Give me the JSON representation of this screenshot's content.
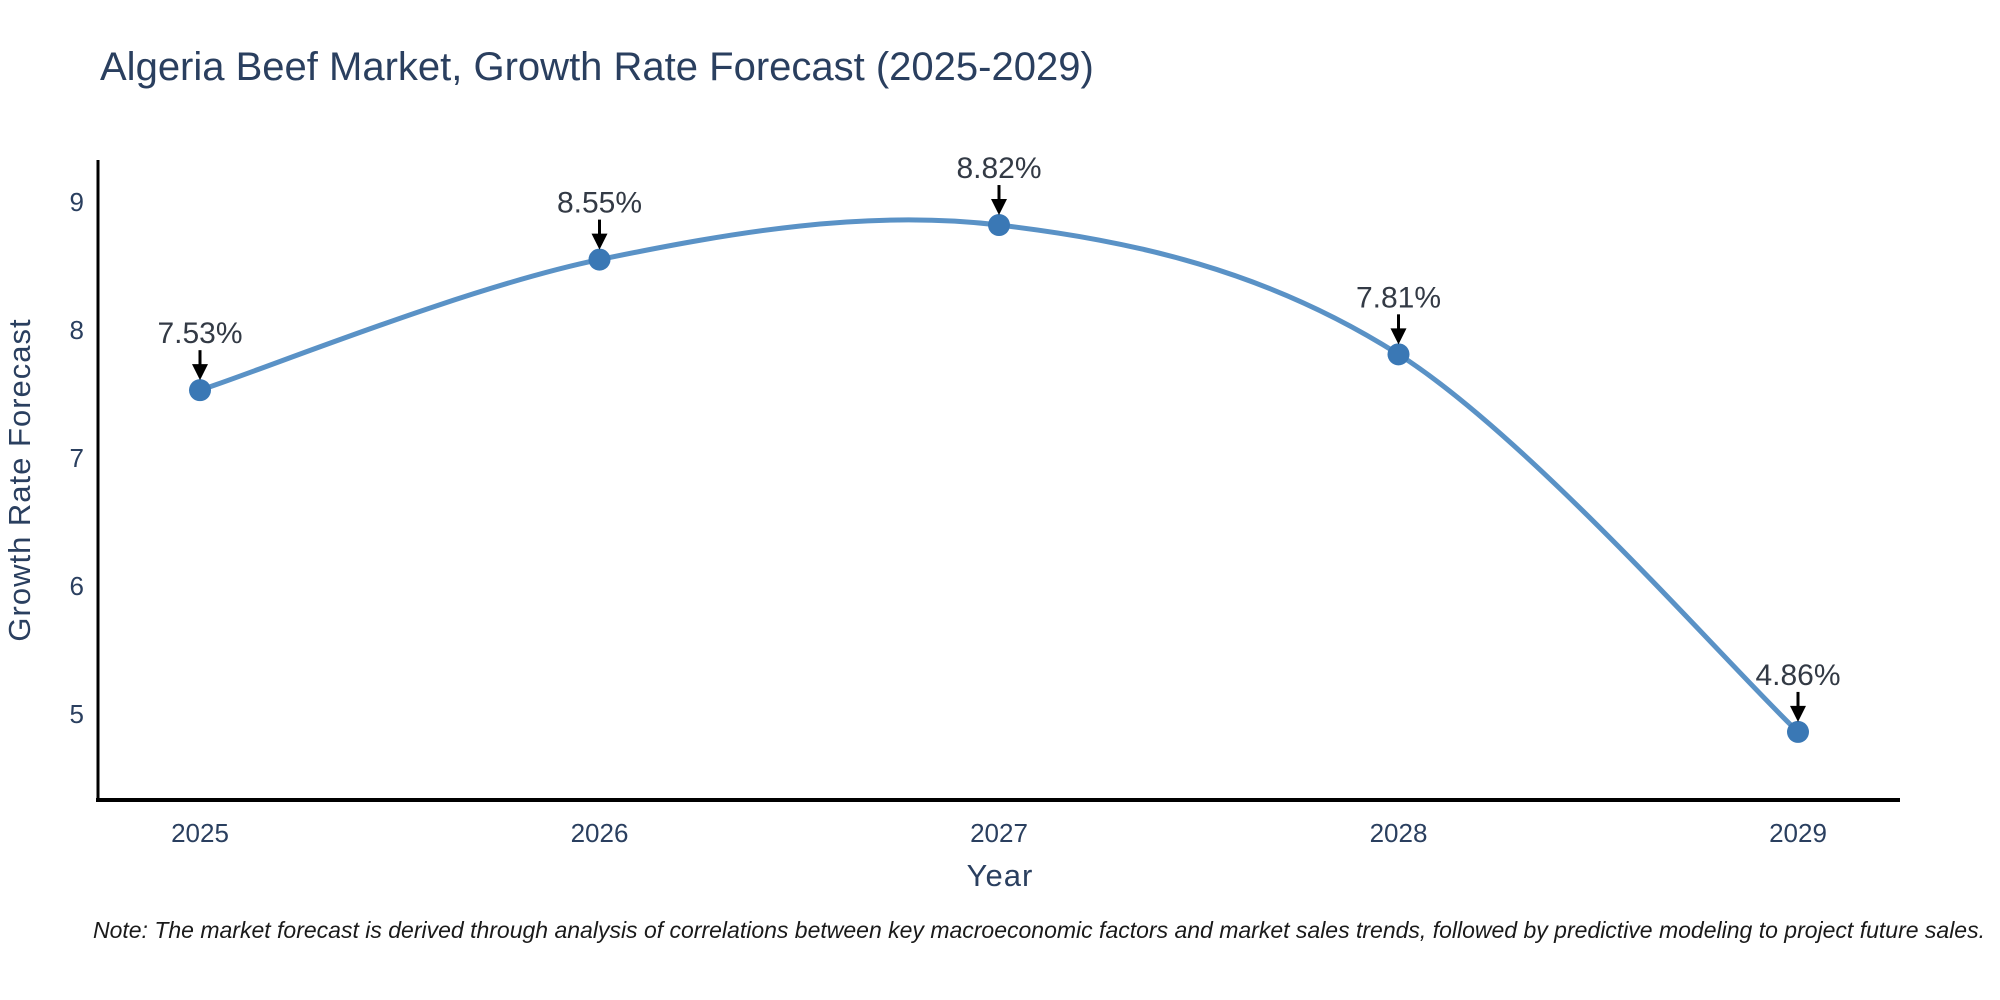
{
  "header": {
    "title": "Algeria Beef Market, Growth Rate Forecast (2025-2029)"
  },
  "axes": {
    "x_title": "Year",
    "y_title": "Growth Rate Forecast",
    "x_ticks": [
      "2025",
      "2026",
      "2027",
      "2028",
      "2029"
    ],
    "y_ticks": [
      "5",
      "6",
      "7",
      "8",
      "9"
    ]
  },
  "footer": {
    "note": "Note: The market forecast is derived through analysis of correlations between key macroeconomic factors and market sales trends, followed by predictive modeling to project future sales."
  },
  "colors": {
    "line": "#5a92c6",
    "marker": "#3a78b5",
    "axis_line": "#000000",
    "chart_text": "#2a3f5f",
    "annotation_text": "#333a45",
    "arrow": "#000000",
    "note_text": "#1a1a1a",
    "background": "#ffffff"
  },
  "chart_data": {
    "type": "line",
    "title": "Algeria Beef Market, Growth Rate Forecast (2025-2029)",
    "x": [
      2025,
      2026,
      2027,
      2028,
      2029
    ],
    "series": [
      {
        "name": "Growth Rate Forecast",
        "values": [
          7.53,
          8.55,
          8.82,
          7.81,
          4.86
        ]
      }
    ],
    "point_labels": [
      "7.53%",
      "8.55%",
      "8.82%",
      "7.81%",
      "4.86%"
    ],
    "xlabel": "Year",
    "ylabel": "Growth Rate Forecast",
    "ylim": [
      4.33,
      9.33
    ],
    "yticks": [
      5,
      6,
      7,
      8,
      9
    ],
    "xticks": [
      "2025",
      "2026",
      "2027",
      "2028",
      "2029"
    ],
    "grid": false,
    "legend": false,
    "line_shape": "spline",
    "markers": true,
    "annotation_style": "percentage label with black down-arrow above each data point"
  }
}
